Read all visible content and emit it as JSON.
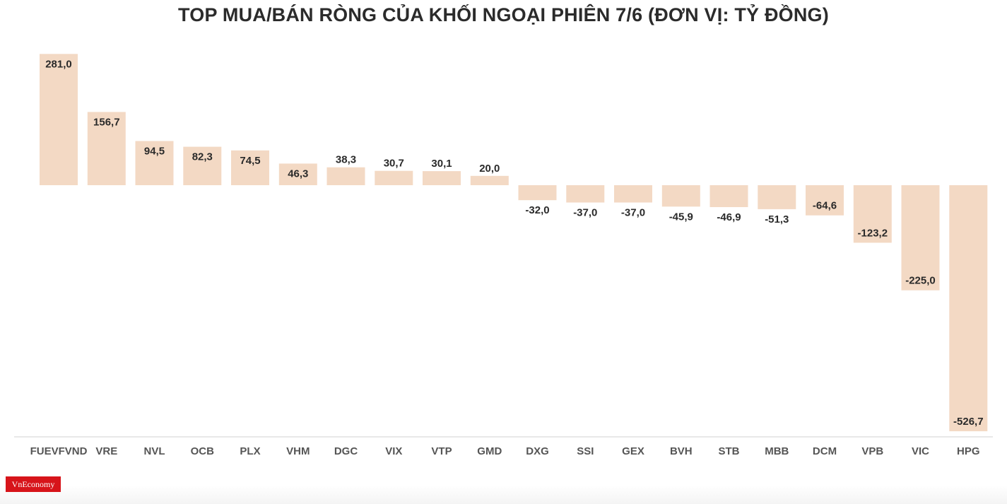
{
  "chart_data": {
    "type": "bar",
    "title": "TOP MUA/BÁN RÒNG CỦA KHỐI NGOẠI PHIÊN 7/6 (ĐƠN VỊ: TỶ ĐỒNG)",
    "categories": [
      "FUEVFVND",
      "VRE",
      "NVL",
      "OCB",
      "PLX",
      "VHM",
      "DGC",
      "VIX",
      "VTP",
      "GMD",
      "DXG",
      "SSI",
      "GEX",
      "BVH",
      "STB",
      "MBB",
      "DCM",
      "VPB",
      "VIC",
      "HPG"
    ],
    "values": [
      281.0,
      156.7,
      94.5,
      82.3,
      74.5,
      46.3,
      38.3,
      30.7,
      30.1,
      20.0,
      -32.0,
      -37.0,
      -37.0,
      -45.9,
      -46.9,
      -51.3,
      -64.6,
      -123.2,
      -225.0,
      -526.7
    ],
    "value_labels": [
      "281,0",
      "156,7",
      "94,5",
      "82,3",
      "74,5",
      "46,3",
      "38,3",
      "30,7",
      "30,1",
      "20,0",
      "-32,0",
      "-37,0",
      "-37,0",
      "-45,9",
      "-46,9",
      "-51,3",
      "-64,6",
      "-123,2",
      "-225,0",
      "-526,7"
    ],
    "ylim": [
      -540,
      290
    ],
    "grid": false,
    "colors": {
      "bar": "#f3d9c4",
      "text": "#2a2a2a",
      "tick": "#555555",
      "axis": "#d0d0d0"
    }
  },
  "brand": {
    "logo_text": "VnEconomy",
    "logo_color": "#d7141a"
  }
}
